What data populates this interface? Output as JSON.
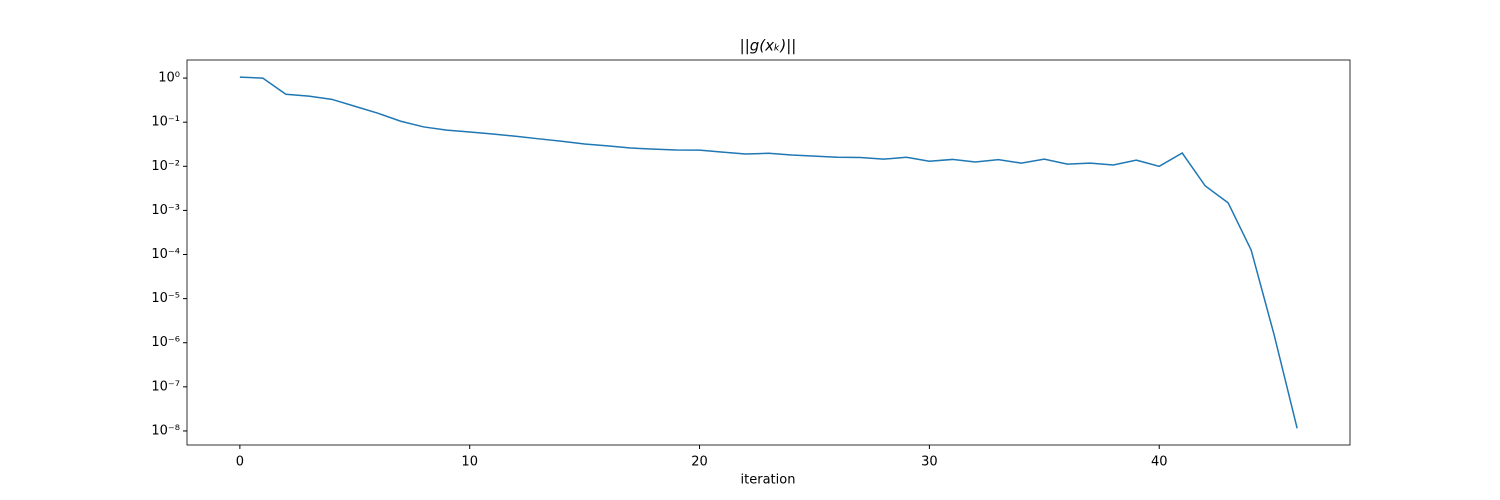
{
  "chart_data": {
    "type": "line",
    "title": "||g(xₖ)||",
    "x_label": "iteration",
    "x": [
      0,
      1,
      2,
      3,
      4,
      5,
      6,
      7,
      8,
      9,
      10,
      11,
      12,
      13,
      14,
      15,
      16,
      17,
      18,
      19,
      20,
      21,
      22,
      23,
      24,
      25,
      26,
      27,
      28,
      29,
      30,
      31,
      32,
      33,
      34,
      35,
      36,
      37,
      38,
      39,
      40,
      41,
      42,
      43,
      44,
      45,
      46
    ],
    "values": [
      1.05,
      1.0,
      0.43,
      0.39,
      0.33,
      0.23,
      0.16,
      0.105,
      0.078,
      0.066,
      0.06,
      0.054,
      0.048,
      0.042,
      0.037,
      0.032,
      0.029,
      0.026,
      0.0245,
      0.0234,
      0.0233,
      0.021,
      0.019,
      0.0197,
      0.018,
      0.017,
      0.016,
      0.0158,
      0.0145,
      0.016,
      0.013,
      0.0143,
      0.0125,
      0.0142,
      0.0118,
      0.0145,
      0.0112,
      0.0118,
      0.0107,
      0.0138,
      0.01,
      0.02,
      0.0036,
      0.00148,
      0.000126,
      1.5e-06,
      1.15e-08
    ],
    "color": "#1f77b4",
    "yscale": "log",
    "xlim": [
      -2.3,
      48.3
    ],
    "xticks": [
      0,
      10,
      20,
      30,
      40
    ],
    "ylim": [
      4.8e-09,
      2.57
    ],
    "yticks": [
      {
        "value": 1,
        "label": "10⁰"
      },
      {
        "value": 0.1,
        "label": "10⁻¹"
      },
      {
        "value": 0.01,
        "label": "10⁻²"
      },
      {
        "value": 0.001,
        "label": "10⁻³"
      },
      {
        "value": 0.0001,
        "label": "10⁻⁴"
      },
      {
        "value": 1e-05,
        "label": "10⁻⁵"
      },
      {
        "value": 1e-06,
        "label": "10⁻⁶"
      },
      {
        "value": 1e-07,
        "label": "10⁻⁷"
      },
      {
        "value": 1e-08,
        "label": "10⁻⁸"
      }
    ],
    "grid": false
  }
}
